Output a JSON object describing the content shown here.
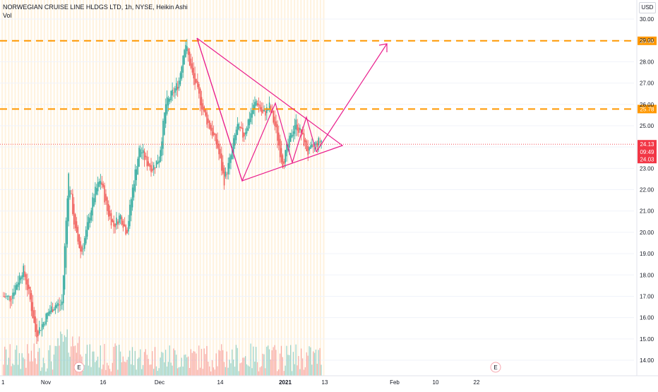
{
  "legend": {
    "title": "NORWEGIAN CRUISE LINE HLDGS LTD, 1h, NYSE, Heikin Ashi",
    "volume_label": "Vol"
  },
  "currency": "USD",
  "colors": {
    "up": "#26a69a",
    "down": "#ef5350",
    "drawing": "#e91e8c",
    "level": "#ff9800",
    "current": "#f23645",
    "session_band": "#fff3e0",
    "grid": "#f0f3fa"
  },
  "chart_data": {
    "type": "candlestick",
    "title": "NORWEGIAN CRUISE LINE HLDGS LTD, 1h, NYSE, Heikin Ashi",
    "y_ticks": [
      "30.00",
      "29.00",
      "28.00",
      "27.00",
      "26.00",
      "25.00",
      "24.00",
      "23.00",
      "22.00",
      "21.00",
      "20.00",
      "19.00",
      "18.00",
      "17.00",
      "16.00",
      "15.00",
      "14.00"
    ],
    "ylim": [
      13.6,
      30.4
    ],
    "x_ticks": [
      "1",
      "Nov",
      "16",
      "Dec",
      "14",
      "2021",
      "13",
      "Feb",
      "10",
      "22"
    ],
    "price_path": [
      [
        "Oct 26",
        17.0
      ],
      [
        "Oct 27",
        16.9
      ],
      [
        "Oct 28",
        17.6
      ],
      [
        "Oct 29",
        18.3
      ],
      [
        "Oct 30",
        17.0
      ],
      [
        "Nov 2",
        15.2
      ],
      [
        "Nov 3",
        15.7
      ],
      [
        "Nov 4",
        16.3
      ],
      [
        "Nov 5",
        16.6
      ],
      [
        "Nov 6",
        16.6
      ],
      [
        "Nov 9",
        22.8
      ],
      [
        "Nov 10",
        20.1
      ],
      [
        "Nov 11",
        19.0
      ],
      [
        "Nov 12",
        20.4
      ],
      [
        "Nov 13",
        21.8
      ],
      [
        "Nov 16",
        22.5
      ],
      [
        "Nov 17",
        21.0
      ],
      [
        "Nov 18",
        20.3
      ],
      [
        "Nov 19",
        20.8
      ],
      [
        "Nov 20",
        20.0
      ],
      [
        "Nov 23",
        22.3
      ],
      [
        "Nov 24",
        24.0
      ],
      [
        "Nov 25",
        23.3
      ],
      [
        "Nov 27",
        23.0
      ],
      [
        "Nov 30",
        23.5
      ],
      [
        "Dec 1",
        26.0
      ],
      [
        "Dec 2",
        26.5
      ],
      [
        "Dec 3",
        27.0
      ],
      [
        "Dec 4",
        29.0
      ],
      [
        "Dec 7",
        27.5
      ],
      [
        "Dec 8",
        26.5
      ],
      [
        "Dec 9",
        25.5
      ],
      [
        "Dec 10",
        24.8
      ],
      [
        "Dec 11",
        24.0
      ],
      [
        "Dec 14",
        22.4
      ],
      [
        "Dec 15",
        23.5
      ],
      [
        "Dec 16",
        25.0
      ],
      [
        "Dec 17",
        24.5
      ],
      [
        "Dec 18",
        25.5
      ],
      [
        "Dec 21",
        26.2
      ],
      [
        "Dec 22",
        25.5
      ],
      [
        "Dec 23",
        25.9
      ],
      [
        "Dec 24",
        24.8
      ],
      [
        "Dec 28",
        23.2
      ],
      [
        "Dec 29",
        24.2
      ],
      [
        "Dec 30",
        25.2
      ],
      [
        "Dec 31",
        24.5
      ],
      [
        "Jan 4",
        23.7
      ],
      [
        "Jan 5",
        24.1
      ],
      [
        "Jan 6",
        24.3
      ]
    ],
    "volume_scale_note": "volume shown as bars at bottom",
    "levels": [
      {
        "label": "28.98",
        "value": 28.98
      },
      {
        "label": "25.78",
        "value": 25.78
      }
    ],
    "last_price": {
      "label": "24.13",
      "value": 24.13,
      "countdown": "09:49"
    },
    "prev_price": {
      "label": "24.03",
      "value": 24.03
    },
    "events": [
      "E",
      "E"
    ]
  }
}
